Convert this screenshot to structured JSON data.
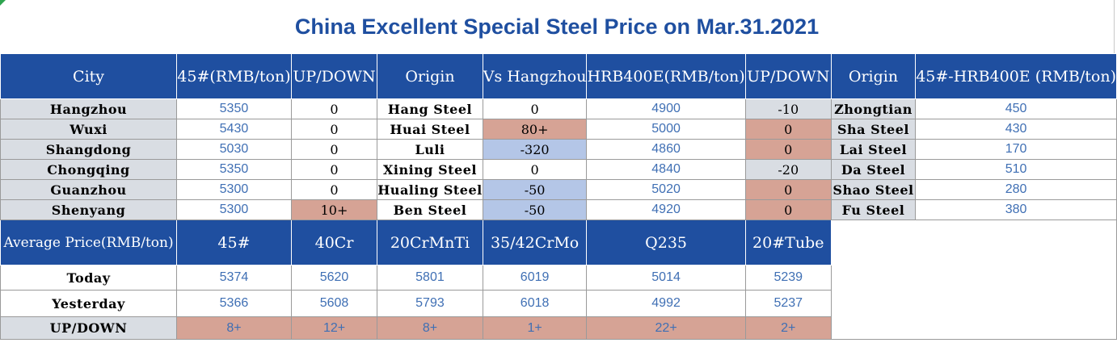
{
  "title": "China Excellent Special Steel Price on Mar.31.2021",
  "top_table": {
    "headers": [
      "City",
      "45#(RMB/ton)",
      "UP/DOWN",
      "Origin",
      "Vs Hangzhou",
      "HRB400E(RMB/ton)",
      "UP/DOWN",
      "Origin",
      "45#-HRB400E (RMB/ton)"
    ],
    "rows": [
      {
        "city": "Hangzhou",
        "price45": "5350",
        "updown45": "0",
        "origin": "Hang Steel",
        "vs_hangzhou": "0",
        "hrb400e": "4900",
        "updown_hrb": "-10",
        "origin2": "Zhongtian",
        "diff": "450"
      },
      {
        "city": "Wuxi",
        "price45": "5430",
        "updown45": "0",
        "origin": "Huai Steel",
        "vs_hangzhou": "80+",
        "hrb400e": "5000",
        "updown_hrb": "0",
        "origin2": "Sha Steel",
        "diff": "430"
      },
      {
        "city": "Shangdong",
        "price45": "5030",
        "updown45": "0",
        "origin": "Luli",
        "vs_hangzhou": "-320",
        "hrb400e": "4860",
        "updown_hrb": "0",
        "origin2": "Lai Steel",
        "diff": "170"
      },
      {
        "city": "Chongqing",
        "price45": "5350",
        "updown45": "0",
        "origin": "Xining Steel",
        "vs_hangzhou": "0",
        "hrb400e": "4840",
        "updown_hrb": "-20",
        "origin2": "Da Steel",
        "diff": "510"
      },
      {
        "city": "Guanzhou",
        "price45": "5300",
        "updown45": "0",
        "origin": "Hualing Steel",
        "vs_hangzhou": "-50",
        "hrb400e": "5020",
        "updown_hrb": "0",
        "origin2": "Shao Steel",
        "diff": "280"
      },
      {
        "city": "Shenyang",
        "price45": "5300",
        "updown45": "10+",
        "origin": "Ben Steel",
        "vs_hangzhou": "-50",
        "hrb400e": "4920",
        "updown_hrb": "0",
        "origin2": "Fu Steel",
        "diff": "380"
      }
    ]
  },
  "avg_table": {
    "headers": [
      "Average Price(RMB/ton)",
      "45#",
      "40Cr",
      "20CrMnTi",
      "35/42CrMo",
      "Q235",
      "20#Tube"
    ],
    "rows": [
      {
        "label": "Today",
        "values": [
          "5374",
          "5620",
          "5801",
          "6019",
          "5014",
          "5239"
        ]
      },
      {
        "label": "Yesterday",
        "values": [
          "5366",
          "5608",
          "5793",
          "6018",
          "4992",
          "5237"
        ]
      },
      {
        "label": "UP/DOWN",
        "values": [
          "8+",
          "12+",
          "8+",
          "1+",
          "22+",
          "2+"
        ]
      }
    ]
  },
  "colors": {
    "header_bg": "#1f4fa0",
    "title_text": "#1f4fa0",
    "label_bg": "#d9dde3",
    "up_highlight": "#d6a395",
    "down_highlight": "#b4c6e7",
    "value_text": "#3f6fb4"
  }
}
